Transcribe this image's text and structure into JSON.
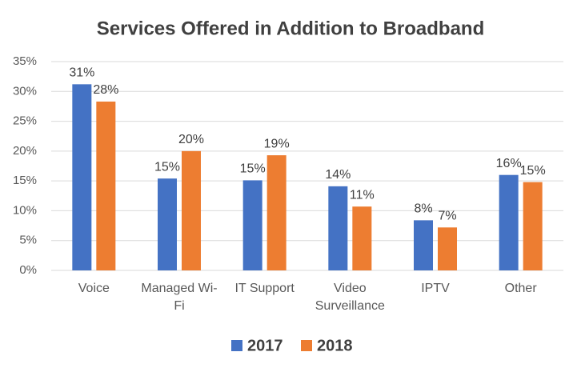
{
  "chart_data": {
    "type": "bar",
    "title": "Services Offered in Addition to Broadband",
    "categories": [
      "Voice",
      "Managed Wi-Fi",
      "IT Support",
      "Video Surveillance",
      "IPTV",
      "Other"
    ],
    "series": [
      {
        "name": "2017",
        "color": "#4472c4",
        "values": [
          31.2,
          15.4,
          15.1,
          14.1,
          8.4,
          16.0
        ],
        "value_labels": [
          "31%",
          "15%",
          "15%",
          "14%",
          "8%",
          "16%"
        ]
      },
      {
        "name": "2018",
        "color": "#ed7d31",
        "values": [
          28.3,
          20.0,
          19.3,
          10.7,
          7.2,
          14.8
        ],
        "value_labels": [
          "28%",
          "20%",
          "19%",
          "11%",
          "7%",
          "15%"
        ]
      }
    ],
    "ylim": [
      0,
      35
    ],
    "yticks": [
      {
        "value": 0,
        "label": "0%"
      },
      {
        "value": 5,
        "label": "5%"
      },
      {
        "value": 10,
        "label": "10%"
      },
      {
        "value": 15,
        "label": "15%"
      },
      {
        "value": 20,
        "label": "20%"
      },
      {
        "value": 25,
        "label": "25%"
      },
      {
        "value": 30,
        "label": "30%"
      },
      {
        "value": 35,
        "label": "35%"
      }
    ],
    "grid": true,
    "legend": "bottom"
  }
}
